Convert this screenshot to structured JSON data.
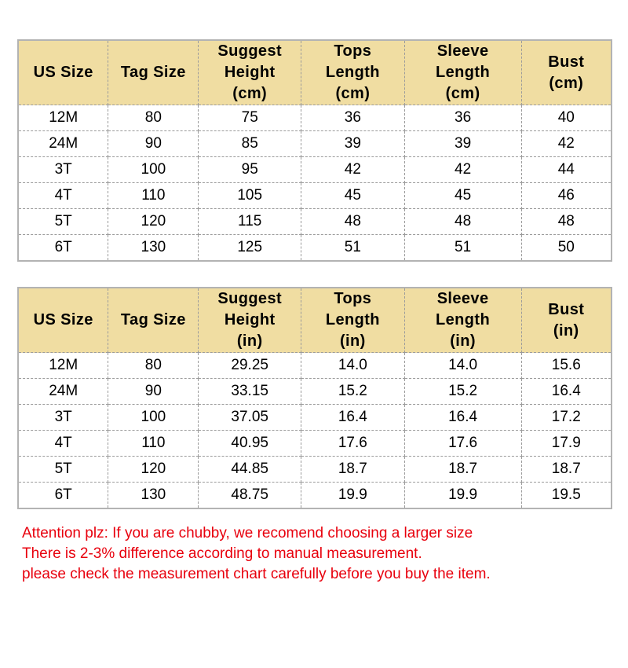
{
  "colors": {
    "header_bg": "#f0dda2",
    "grid_line": "#9b9b9b",
    "outer_border": "#b3b3b3",
    "attention_text": "#e8000d",
    "cell_text": "#000000"
  },
  "table_cm": {
    "headers": [
      "US Size",
      "Tag Size",
      "Suggest\nHeight\n(cm)",
      "Tops\nLength\n(cm)",
      "Sleeve\nLength\n(cm)",
      "Bust\n(cm)"
    ],
    "rows": [
      [
        "12M",
        "80",
        "75",
        "36",
        "36",
        "40"
      ],
      [
        "24M",
        "90",
        "85",
        "39",
        "39",
        "42"
      ],
      [
        "3T",
        "100",
        "95",
        "42",
        "42",
        "44"
      ],
      [
        "4T",
        "110",
        "105",
        "45",
        "45",
        "46"
      ],
      [
        "5T",
        "120",
        "115",
        "48",
        "48",
        "48"
      ],
      [
        "6T",
        "130",
        "125",
        "51",
        "51",
        "50"
      ]
    ]
  },
  "table_in": {
    "headers": [
      "US Size",
      "Tag Size",
      "Suggest\nHeight\n(in)",
      "Tops\nLength\n(in)",
      "Sleeve\nLength\n(in)",
      "Bust\n(in)"
    ],
    "rows": [
      [
        "12M",
        "80",
        "29.25",
        "14.0",
        "14.0",
        "15.6"
      ],
      [
        "24M",
        "90",
        "33.15",
        "15.2",
        "15.2",
        "16.4"
      ],
      [
        "3T",
        "100",
        "37.05",
        "16.4",
        "16.4",
        "17.2"
      ],
      [
        "4T",
        "110",
        "40.95",
        "17.6",
        "17.6",
        "17.9"
      ],
      [
        "5T",
        "120",
        "44.85",
        "18.7",
        "18.7",
        "18.7"
      ],
      [
        "6T",
        "130",
        "48.75",
        "19.9",
        "19.9",
        "19.5"
      ]
    ]
  },
  "attention": {
    "lines": [
      "Attention plz: If you are chubby, we recomend choosing a larger size",
      "There is 2-3% difference according to manual measurement.",
      "please check the measurement chart carefully before you buy the item."
    ]
  },
  "chart_data": [
    {
      "type": "table",
      "title": "Size chart (cm)",
      "columns": [
        "US Size",
        "Tag Size",
        "Suggest Height (cm)",
        "Tops Length (cm)",
        "Sleeve Length (cm)",
        "Bust (cm)"
      ],
      "rows": [
        [
          "12M",
          80,
          75,
          36,
          36,
          40
        ],
        [
          "24M",
          90,
          85,
          39,
          39,
          42
        ],
        [
          "3T",
          100,
          95,
          42,
          42,
          44
        ],
        [
          "4T",
          110,
          105,
          45,
          45,
          46
        ],
        [
          "5T",
          120,
          115,
          48,
          48,
          48
        ],
        [
          "6T",
          130,
          125,
          51,
          51,
          50
        ]
      ]
    },
    {
      "type": "table",
      "title": "Size chart (in)",
      "columns": [
        "US Size",
        "Tag Size",
        "Suggest Height (in)",
        "Tops Length (in)",
        "Sleeve Length (in)",
        "Bust (in)"
      ],
      "rows": [
        [
          "12M",
          80,
          29.25,
          14.0,
          14.0,
          15.6
        ],
        [
          "24M",
          90,
          33.15,
          15.2,
          15.2,
          16.4
        ],
        [
          "3T",
          100,
          37.05,
          16.4,
          16.4,
          17.2
        ],
        [
          "4T",
          110,
          40.95,
          17.6,
          17.6,
          17.9
        ],
        [
          "5T",
          120,
          44.85,
          18.7,
          18.7,
          18.7
        ],
        [
          "6T",
          130,
          48.75,
          19.9,
          19.9,
          19.5
        ]
      ]
    }
  ]
}
